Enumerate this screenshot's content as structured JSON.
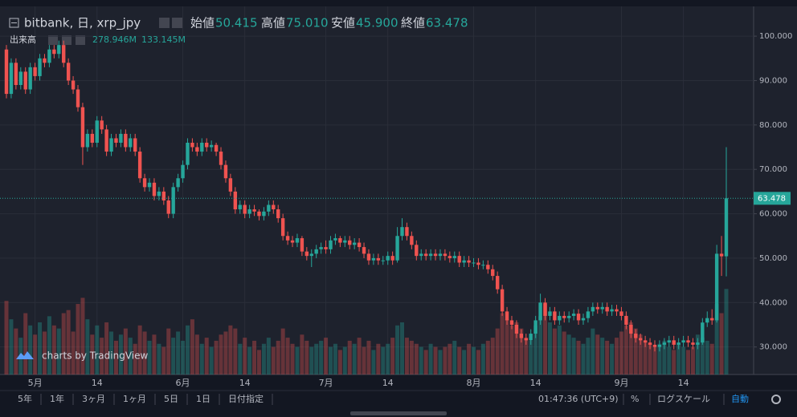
{
  "chart_data": {
    "type": "candlestick",
    "symbol": "bitbank, 日, xrp_jpy",
    "ohlc_names": [
      "始値",
      "高値",
      "安値",
      "終値"
    ],
    "ohlc_last": [
      50.415,
      75.01,
      45.9,
      63.478
    ],
    "ohlc_last_labels": [
      "50.415",
      "75.010",
      "45.900",
      "63.478"
    ],
    "volume_name": "出来高",
    "volume_last_labels": [
      {
        "value": 278.946,
        "label": "278.946M"
      },
      {
        "value": 133.145,
        "label": "133.145M"
      }
    ],
    "up_color": "#26a69a",
    "down_color": "#ef5350",
    "watermark": "charts by TradingView",
    "ylim": [
      23.8,
      106.7
    ],
    "yticks": [
      {
        "value": 30,
        "label": "30.000"
      },
      {
        "value": 40,
        "label": "40.000"
      },
      {
        "value": 50,
        "label": "50.000"
      },
      {
        "value": 60,
        "label": "60.000"
      },
      {
        "value": 70,
        "label": "70.000"
      },
      {
        "value": 80,
        "label": "80.000"
      },
      {
        "value": 90,
        "label": "90.000"
      },
      {
        "value": 100,
        "label": "100.000"
      }
    ],
    "grid": true,
    "volume_lim": [
      0,
      1200
    ],
    "categories": [
      null,
      null,
      null,
      null,
      null,
      null,
      "5月",
      null,
      null,
      null,
      null,
      null,
      null,
      null,
      null,
      null,
      null,
      null,
      null,
      "14",
      null,
      null,
      null,
      null,
      null,
      null,
      null,
      null,
      null,
      null,
      null,
      null,
      null,
      null,
      null,
      null,
      null,
      "6月",
      null,
      null,
      null,
      null,
      null,
      null,
      null,
      null,
      null,
      null,
      null,
      null,
      "14",
      null,
      null,
      null,
      null,
      null,
      null,
      null,
      null,
      null,
      null,
      null,
      null,
      null,
      null,
      null,
      null,
      "7月",
      null,
      null,
      null,
      null,
      null,
      null,
      null,
      null,
      null,
      null,
      null,
      null,
      "14",
      null,
      null,
      null,
      null,
      null,
      null,
      null,
      null,
      null,
      null,
      null,
      null,
      null,
      null,
      null,
      null,
      null,
      "8月",
      null,
      null,
      null,
      null,
      null,
      null,
      null,
      null,
      null,
      null,
      null,
      null,
      "14",
      null,
      null,
      null,
      null,
      null,
      null,
      null,
      null,
      null,
      null,
      null,
      null,
      null,
      null,
      null,
      null,
      null,
      "9月",
      null,
      null,
      null,
      null,
      null,
      null,
      null,
      null,
      null,
      null,
      null,
      null,
      "14",
      null,
      null,
      null,
      null,
      null,
      null,
      null,
      null,
      null
    ],
    "ohlc": [
      [
        97,
        98,
        86,
        87
      ],
      [
        87,
        95,
        86,
        94
      ],
      [
        94,
        95,
        88,
        89
      ],
      [
        89,
        93,
        88,
        92
      ],
      [
        92,
        93,
        87,
        88
      ],
      [
        88,
        94,
        87,
        93
      ],
      [
        93,
        94,
        90,
        91
      ],
      [
        91,
        96,
        90,
        95
      ],
      [
        95,
        96,
        93,
        94
      ],
      [
        94,
        98,
        93,
        97
      ],
      [
        97,
        98,
        95,
        96
      ],
      [
        96,
        99,
        95,
        98
      ],
      [
        98,
        99,
        93,
        94
      ],
      [
        94,
        95,
        89,
        90
      ],
      [
        90,
        91,
        87,
        88
      ],
      [
        88,
        89,
        83,
        84
      ],
      [
        84,
        85,
        71,
        75
      ],
      [
        75,
        79,
        74,
        78
      ],
      [
        78,
        79,
        75,
        76
      ],
      [
        76,
        82,
        75,
        81
      ],
      [
        81,
        82,
        78,
        79
      ],
      [
        79,
        80,
        73,
        74
      ],
      [
        74,
        78,
        73,
        77
      ],
      [
        77,
        78,
        75,
        76
      ],
      [
        76,
        79,
        75,
        78
      ],
      [
        78,
        79,
        74,
        75
      ],
      [
        75,
        78,
        74,
        77
      ],
      [
        77,
        78,
        73,
        74
      ],
      [
        74,
        75,
        67,
        68
      ],
      [
        68,
        69,
        65,
        66
      ],
      [
        66,
        68,
        65,
        67
      ],
      [
        67,
        68,
        63,
        64
      ],
      [
        64,
        66,
        63,
        65
      ],
      [
        65,
        66,
        62,
        63
      ],
      [
        63,
        64,
        59,
        60
      ],
      [
        60,
        67,
        59,
        66
      ],
      [
        66,
        69,
        65,
        68
      ],
      [
        68,
        72,
        67,
        71
      ],
      [
        71,
        77,
        70,
        76
      ],
      [
        76,
        77,
        74,
        75
      ],
      [
        75,
        76,
        73,
        74
      ],
      [
        74,
        77,
        73,
        76
      ],
      [
        76,
        77,
        74,
        75
      ],
      [
        75,
        76.5,
        74,
        75.5
      ],
      [
        75.5,
        76,
        73,
        74
      ],
      [
        74,
        75,
        70,
        71
      ],
      [
        71,
        72,
        67,
        68
      ],
      [
        68,
        69,
        64,
        65
      ],
      [
        65,
        66,
        60,
        61
      ],
      [
        61,
        63,
        60,
        62
      ],
      [
        62,
        63,
        59,
        60
      ],
      [
        60,
        62,
        59,
        61
      ],
      [
        61,
        62,
        59.5,
        60.5
      ],
      [
        60.5,
        61,
        58.5,
        59.5
      ],
      [
        59.5,
        61.5,
        58.5,
        60.5
      ],
      [
        60.5,
        63,
        59.5,
        62
      ],
      [
        62,
        63,
        60,
        61
      ],
      [
        61,
        62,
        58,
        59
      ],
      [
        59,
        60,
        54,
        55
      ],
      [
        55,
        56,
        53,
        54
      ],
      [
        54,
        55,
        52.5,
        53.5
      ],
      [
        53.5,
        55.5,
        52.5,
        54.5
      ],
      [
        54.5,
        55,
        50.5,
        51.5
      ],
      [
        51.5,
        52.5,
        49.5,
        50.5
      ],
      [
        50.5,
        52,
        48,
        51
      ],
      [
        51,
        53,
        50,
        52
      ],
      [
        52,
        53.5,
        51,
        52.5
      ],
      [
        52.5,
        54,
        51,
        52
      ],
      [
        52,
        55,
        51,
        54
      ],
      [
        54,
        55.5,
        53,
        54.5
      ],
      [
        54.5,
        55,
        52.5,
        53.5
      ],
      [
        53.5,
        55,
        52.5,
        54
      ],
      [
        54,
        55,
        52,
        53
      ],
      [
        53,
        54.5,
        52,
        53.5
      ],
      [
        53.5,
        54.5,
        51.5,
        52.5
      ],
      [
        52.5,
        53.5,
        50,
        51
      ],
      [
        51,
        52,
        48.5,
        49.5
      ],
      [
        49.5,
        51,
        48.5,
        50
      ],
      [
        50,
        51,
        48.5,
        49.5
      ],
      [
        49.5,
        50.5,
        48.5,
        49.5
      ],
      [
        49.5,
        51.5,
        48.5,
        50.5
      ],
      [
        50.5,
        51.5,
        48.5,
        49.5
      ],
      [
        49.5,
        57,
        49,
        55
      ],
      [
        55,
        59,
        54,
        57
      ],
      [
        57,
        58,
        54,
        55
      ],
      [
        55,
        56,
        52,
        53
      ],
      [
        53,
        54,
        49.5,
        50.5
      ],
      [
        50.5,
        52,
        49.5,
        51
      ],
      [
        51,
        52,
        49.5,
        50.5
      ],
      [
        50.5,
        52,
        49.5,
        51
      ],
      [
        51,
        52,
        49.5,
        50.5
      ],
      [
        50.5,
        52,
        49.5,
        51
      ],
      [
        51,
        52,
        49.5,
        50.5
      ],
      [
        50.5,
        51.5,
        49,
        50
      ],
      [
        50,
        51.5,
        49,
        50.5
      ],
      [
        50.5,
        51.5,
        48,
        49
      ],
      [
        49,
        50.5,
        48,
        49.5
      ],
      [
        49.5,
        50.5,
        48,
        49
      ],
      [
        49,
        50,
        48,
        49
      ],
      [
        49,
        50,
        47.5,
        48.5
      ],
      [
        48.5,
        49.5,
        47.5,
        48.5
      ],
      [
        48.5,
        49.5,
        46.5,
        47.5
      ],
      [
        47.5,
        48.5,
        45,
        46
      ],
      [
        46,
        47,
        42,
        43
      ],
      [
        43,
        44,
        37,
        38
      ],
      [
        38,
        39,
        35,
        36
      ],
      [
        36,
        37,
        34,
        35
      ],
      [
        35,
        36,
        32,
        33
      ],
      [
        33,
        34,
        31,
        32
      ],
      [
        32,
        33,
        30.5,
        31.5
      ],
      [
        31.5,
        34,
        30.5,
        33
      ],
      [
        33,
        37,
        32,
        36
      ],
      [
        36,
        42,
        35,
        40
      ],
      [
        40,
        41,
        36,
        37
      ],
      [
        37,
        39,
        36,
        38
      ],
      [
        38,
        39,
        35,
        36
      ],
      [
        36,
        38,
        35,
        37
      ],
      [
        37,
        38,
        35.5,
        36.5
      ],
      [
        36.5,
        38,
        35.5,
        37
      ],
      [
        37,
        38.5,
        36,
        37.5
      ],
      [
        37.5,
        38.5,
        35,
        36
      ],
      [
        36,
        37.5,
        35,
        36.5
      ],
      [
        36.5,
        39,
        35.5,
        38
      ],
      [
        38,
        40,
        37,
        39
      ],
      [
        39,
        40,
        37.5,
        38.5
      ],
      [
        38.5,
        40,
        37.5,
        39
      ],
      [
        39,
        40,
        37,
        38
      ],
      [
        38,
        39.5,
        37,
        38.5
      ],
      [
        38.5,
        39.5,
        37,
        38
      ],
      [
        38,
        39,
        36,
        37
      ],
      [
        37,
        38,
        34,
        35
      ],
      [
        35,
        36,
        32,
        33
      ],
      [
        33,
        34,
        31,
        32
      ],
      [
        32,
        33,
        30.5,
        31.5
      ],
      [
        31.5,
        32.5,
        30,
        31
      ],
      [
        31,
        32,
        29.5,
        30.5
      ],
      [
        30.5,
        31.5,
        29,
        30
      ],
      [
        30,
        31.5,
        29,
        30.5
      ],
      [
        30.5,
        32,
        29.5,
        31
      ],
      [
        31,
        32.5,
        30,
        31.5
      ],
      [
        31.5,
        32.5,
        29.5,
        30.5
      ],
      [
        30.5,
        32,
        29.5,
        31
      ],
      [
        31,
        32.5,
        30,
        31.5
      ],
      [
        31.5,
        32.5,
        30,
        31
      ],
      [
        31,
        32,
        29.5,
        30.5
      ],
      [
        30.5,
        32,
        29.5,
        31
      ],
      [
        31,
        36.5,
        30.5,
        35.5
      ],
      [
        35.5,
        38,
        34.5,
        36.5
      ],
      [
        36.5,
        38.5,
        35,
        36
      ],
      [
        36,
        53,
        35.5,
        51
      ],
      [
        51,
        55,
        46,
        50.415
      ],
      [
        50.415,
        75.01,
        45.9,
        63.478
      ]
    ],
    "volume": [
      240,
      180,
      150,
      120,
      200,
      160,
      130,
      170,
      140,
      190,
      160,
      150,
      200,
      210,
      140,
      230,
      250,
      180,
      130,
      160,
      120,
      170,
      140,
      110,
      130,
      150,
      120,
      100,
      160,
      140,
      110,
      130,
      100,
      90,
      150,
      120,
      140,
      110,
      160,
      180,
      130,
      100,
      120,
      90,
      110,
      130,
      140,
      160,
      150,
      100,
      120,
      90,
      110,
      80,
      100,
      120,
      90,
      110,
      150,
      120,
      100,
      90,
      130,
      110,
      90,
      100,
      110,
      120,
      90,
      100,
      80,
      90,
      110,
      100,
      120,
      90,
      110,
      80,
      100,
      90,
      100,
      120,
      160,
      170,
      120,
      110,
      100,
      90,
      80,
      100,
      90,
      80,
      90,
      100,
      110,
      90,
      80,
      100,
      90,
      80,
      100,
      110,
      120,
      150,
      200,
      180,
      160,
      170,
      150,
      120,
      110,
      160,
      190,
      230,
      170,
      150,
      160,
      140,
      130,
      120,
      110,
      100,
      120,
      150,
      130,
      120,
      110,
      100,
      120,
      140,
      160,
      170,
      150,
      130,
      110,
      100,
      90,
      100,
      110,
      90,
      80,
      100,
      90,
      80,
      90,
      130,
      120,
      110,
      100,
      230,
      200,
      278.946
    ],
    "toolbar_ranges": [
      "5年",
      "1年",
      "3ヶ月",
      "1ヶ月",
      "5日",
      "1日",
      "日付指定"
    ],
    "clock": "01:47:36 (UTC+9)",
    "toolbar_right": [
      "%",
      "ログスケール",
      "自動"
    ]
  }
}
